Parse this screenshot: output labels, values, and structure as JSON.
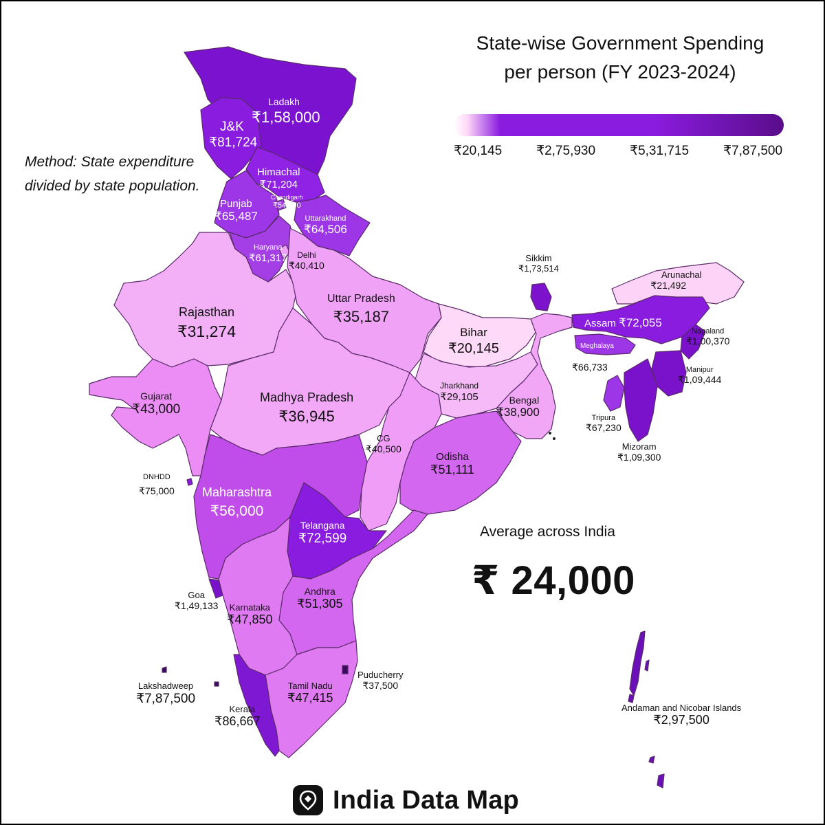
{
  "title_line1": "State-wise Government Spending",
  "title_line2": "per person (FY 2023-2024)",
  "legend": {
    "stops": [
      "#ffd9f8",
      "#8a1ce0",
      "#5a0d8a"
    ],
    "ticks": [
      "₹20,145",
      "₹2,75,930",
      "₹5,31,715",
      "₹7,87,500"
    ]
  },
  "method_note": "Method: State expenditure divided by state population.",
  "average": {
    "label": "Average across India",
    "value": "₹ 24,000"
  },
  "brand": {
    "name": "India Data Map",
    "logo_icon": "map-pin-icon"
  },
  "regions": [
    {
      "id": "ladakh",
      "name": "Ladakh",
      "value": "₹1,58,000",
      "fill": "#7a12d0"
    },
    {
      "id": "jk",
      "name": "J&K",
      "value": "₹81,724",
      "fill": "#8a1ce0"
    },
    {
      "id": "himachal",
      "name": "Himachal",
      "value": "₹71,204",
      "fill": "#8f22e4"
    },
    {
      "id": "chandigarh",
      "name": "Chandigarh",
      "value": "₹54,500",
      "fill": "#a33fe6"
    },
    {
      "id": "punjab",
      "name": "Punjab",
      "value": "₹65,487",
      "fill": "#9c36e6"
    },
    {
      "id": "uttarakhand",
      "name": "Uttarakhand",
      "value": "₹64,506",
      "fill": "#9c36e6"
    },
    {
      "id": "haryana",
      "name": "Haryana",
      "value": "₹61,317",
      "fill": "#a43fe6"
    },
    {
      "id": "delhi",
      "name": "Delhi",
      "value": "₹40,410",
      "fill": "#f0a3f6"
    },
    {
      "id": "rajasthan",
      "name": "Rajasthan",
      "value": "₹31,274",
      "fill": "#f3b0f7"
    },
    {
      "id": "up",
      "name": "Uttar Pradesh",
      "value": "₹35,187",
      "fill": "#f0a3f6"
    },
    {
      "id": "bihar",
      "name": "Bihar",
      "value": "₹20,145",
      "fill": "#ffd9f8"
    },
    {
      "id": "sikkim",
      "name": "Sikkim",
      "value": "₹1,73,514",
      "fill": "#7c12cc"
    },
    {
      "id": "arunachal",
      "name": "Arunachal",
      "value": "₹21,492",
      "fill": "#fdd4f8"
    },
    {
      "id": "assam",
      "name": "Assam",
      "value": "₹72,055",
      "fill": "#8a1ce0"
    },
    {
      "id": "nagaland",
      "name": "Nagaland",
      "value": "₹1,00,370",
      "fill": "#7a12cc"
    },
    {
      "id": "meghalaya",
      "name": "Meghalaya",
      "value": "₹66,733",
      "fill": "#9c36e6"
    },
    {
      "id": "manipur",
      "name": "Manipur",
      "value": "₹1,09,444",
      "fill": "#7a12cc"
    },
    {
      "id": "tripura",
      "name": "Tripura",
      "value": "₹67,230",
      "fill": "#9c36e6"
    },
    {
      "id": "mizoram",
      "name": "Mizoram",
      "value": "₹1,09,300",
      "fill": "#7a12cc"
    },
    {
      "id": "gujarat",
      "name": "Gujarat",
      "value": "₹43,000",
      "fill": "#ec8df5"
    },
    {
      "id": "mp",
      "name": "Madhya Pradesh",
      "value": "₹36,945",
      "fill": "#f3a7f7"
    },
    {
      "id": "jharkhand",
      "name": "Jharkhand",
      "value": "₹29,105",
      "fill": "#f7baf8"
    },
    {
      "id": "bengal",
      "name": "Bengal",
      "value": "₹38,900",
      "fill": "#f1a6f6"
    },
    {
      "id": "cg",
      "name": "CG",
      "value": "₹40,500",
      "fill": "#ef9df6"
    },
    {
      "id": "odisha",
      "name": "Odisha",
      "value": "₹51,111",
      "fill": "#d467ef"
    },
    {
      "id": "dnhdd",
      "name": "DNHDD",
      "value": "₹75,000",
      "fill": "#8a1ce0"
    },
    {
      "id": "maharashtra",
      "name": "Maharashtra",
      "value": "₹56,000",
      "fill": "#c04de9"
    },
    {
      "id": "telangana",
      "name": "Telangana",
      "value": "₹72,599",
      "fill": "#8a1ce0"
    },
    {
      "id": "goa",
      "name": "Goa",
      "value": "₹1,49,133",
      "fill": "#7a12cc"
    },
    {
      "id": "karnataka",
      "name": "Karnataka",
      "value": "₹47,850",
      "fill": "#e07af2"
    },
    {
      "id": "andhra",
      "name": "Andhra",
      "value": "₹51,305",
      "fill": "#d467ef"
    },
    {
      "id": "puducherry",
      "name": "Puducherry",
      "value": "₹37,500",
      "fill": "#3a0a60"
    },
    {
      "id": "tamilnadu",
      "name": "Tamil Nadu",
      "value": "₹47,415",
      "fill": "#e07af2"
    },
    {
      "id": "kerala",
      "name": "Kerala",
      "value": "₹86,667",
      "fill": "#7f18d2"
    },
    {
      "id": "lakshadweep",
      "name": "Lakshadweep",
      "value": "₹7,87,500",
      "fill": "#3a0a60"
    },
    {
      "id": "andaman",
      "name": "Andaman and Nicobar Islands",
      "value": "₹2,97,500",
      "fill": "#6a10b8"
    }
  ]
}
